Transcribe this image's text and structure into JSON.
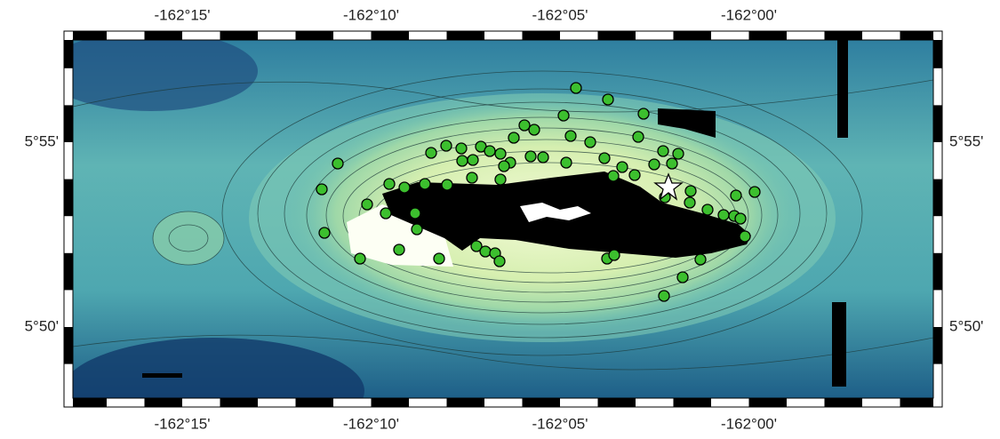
{
  "map": {
    "lon_labels": [
      "-162°15'",
      "-162°10'",
      "-162°05'",
      "-162°00'"
    ],
    "lat_labels": [
      "5°55'",
      "5°50'"
    ]
  }
}
